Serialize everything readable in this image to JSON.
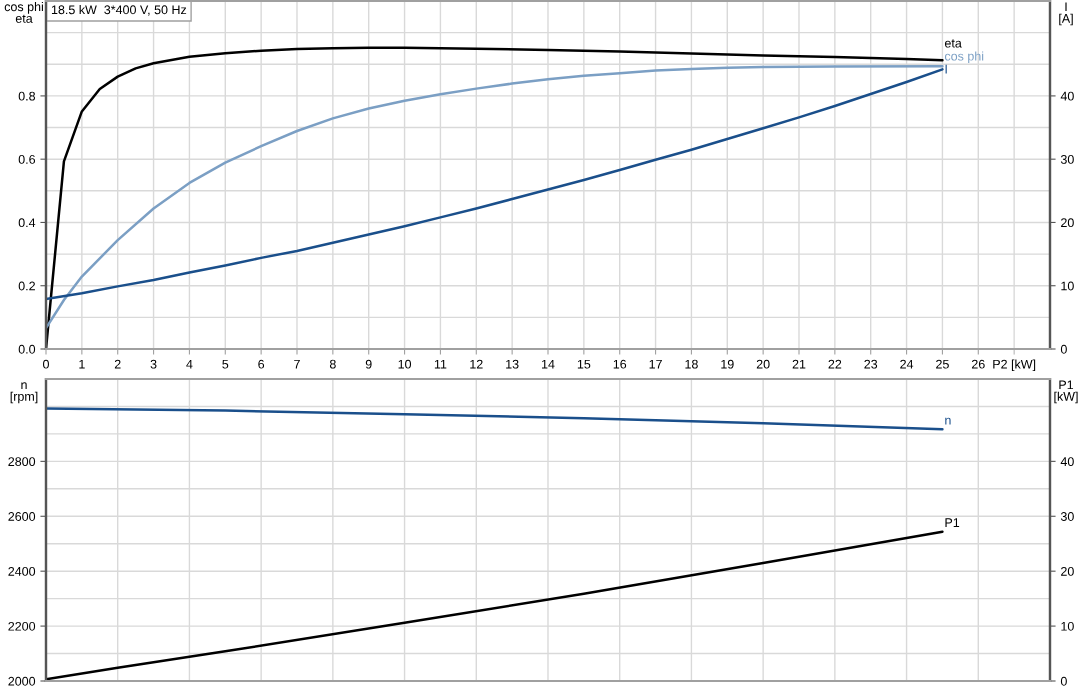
{
  "chart_data": [
    {
      "type": "line",
      "title": "18.5 kW  3*400 V, 50 Hz",
      "xlabel": "P2 [kW]",
      "ylabel": "cos phi\neta",
      "y2label": "I\n[A]",
      "xlim": [
        0,
        28
      ],
      "xticks": [
        0,
        1,
        2,
        3,
        4,
        5,
        6,
        7,
        8,
        9,
        10,
        11,
        12,
        13,
        14,
        15,
        16,
        17,
        18,
        19,
        20,
        21,
        22,
        23,
        24,
        25,
        26,
        {
          "value": 27,
          "label": null
        }
      ],
      "ylim": [
        0,
        1.1
      ],
      "yticks": [
        {
          "value": 0,
          "label": "0.0"
        },
        {
          "value": 0.1,
          "label": null
        },
        0.2,
        {
          "value": 0.3,
          "label": null
        },
        0.4,
        {
          "value": 0.5,
          "label": null
        },
        0.6,
        {
          "value": 0.7,
          "label": null
        },
        0.8,
        {
          "value": 0.9,
          "label": null
        },
        {
          "value": 1.0,
          "label": null
        }
      ],
      "y2lim": [
        0,
        55
      ],
      "y2ticks": [
        0,
        10,
        20,
        30,
        40
      ],
      "grid": true,
      "series": [
        {
          "name": "eta",
          "color": "#000000",
          "x": [
            0,
            0.5,
            1,
            1.5,
            2,
            2.5,
            3,
            4,
            5,
            6,
            7,
            8,
            9,
            10,
            12,
            14,
            16,
            18,
            20,
            22,
            24,
            25
          ],
          "values": [
            0,
            0.593,
            0.751,
            0.822,
            0.861,
            0.887,
            0.903,
            0.924,
            0.935,
            0.943,
            0.948,
            0.951,
            0.952,
            0.952,
            0.949,
            0.945,
            0.94,
            0.934,
            0.928,
            0.923,
            0.917,
            0.913
          ]
        },
        {
          "name": "cos phi",
          "color": "#7b9fc4",
          "x": [
            0,
            0.5,
            1,
            2,
            3,
            4,
            5,
            6,
            7,
            8,
            9,
            10,
            11,
            12,
            13,
            14,
            15,
            16,
            17,
            18,
            19,
            20,
            22,
            25
          ],
          "values": [
            0.066,
            0.155,
            0.229,
            0.344,
            0.444,
            0.525,
            0.589,
            0.641,
            0.689,
            0.729,
            0.76,
            0.785,
            0.805,
            0.823,
            0.839,
            0.853,
            0.864,
            0.872,
            0.88,
            0.885,
            0.889,
            0.891,
            0.893,
            0.894
          ]
        },
        {
          "name": "I",
          "color": "#1a4f8b",
          "axis": "y2",
          "x": [
            0,
            1,
            2,
            3,
            4,
            5,
            6,
            7,
            8,
            9,
            10,
            11,
            12,
            13,
            14,
            15,
            16,
            17,
            18,
            19,
            20,
            21,
            22,
            23,
            24,
            25
          ],
          "values": [
            7.9,
            8.8,
            9.9,
            10.9,
            12.1,
            13.2,
            14.4,
            15.5,
            16.8,
            18.1,
            19.4,
            20.8,
            22.2,
            23.7,
            25.2,
            26.7,
            28.3,
            29.9,
            31.5,
            33.2,
            34.9,
            36.6,
            38.4,
            40.3,
            42.2,
            44.2
          ]
        }
      ]
    },
    {
      "type": "line",
      "ylabel": "n\n[rpm]",
      "y2label": "P1\n[kW]",
      "tick_labels": "y",
      "xlim": [
        0,
        28
      ],
      "xticks": [
        0,
        2,
        4,
        6,
        8,
        10,
        12,
        14,
        16,
        18,
        20,
        22,
        24,
        26,
        28
      ],
      "ylim": [
        2000,
        3100
      ],
      "yticks": [
        2000,
        {
          "value": 2100,
          "label": null
        },
        2200,
        {
          "value": 2300,
          "label": null
        },
        2400,
        {
          "value": 2500,
          "label": null
        },
        2600,
        {
          "value": 2700,
          "label": null
        },
        2800,
        {
          "value": 2900,
          "label": null
        },
        {
          "value": 3000,
          "label": null
        }
      ],
      "y2lim": [
        0,
        55
      ],
      "y2ticks": [
        0,
        10,
        20,
        30,
        40
      ],
      "grid": true,
      "series": [
        {
          "name": "n",
          "color": "#1a4f8b",
          "x": [
            0,
            5,
            10,
            15,
            20,
            25
          ],
          "values": [
            2993,
            2985,
            2972,
            2957,
            2939,
            2917
          ]
        },
        {
          "name": "P1",
          "color": "#000000",
          "axis": "y2",
          "x": [
            0,
            2,
            5,
            10,
            15,
            20,
            25
          ],
          "values": [
            0.3,
            2.4,
            5.4,
            10.6,
            15.9,
            21.5,
            27.2
          ]
        }
      ]
    }
  ]
}
